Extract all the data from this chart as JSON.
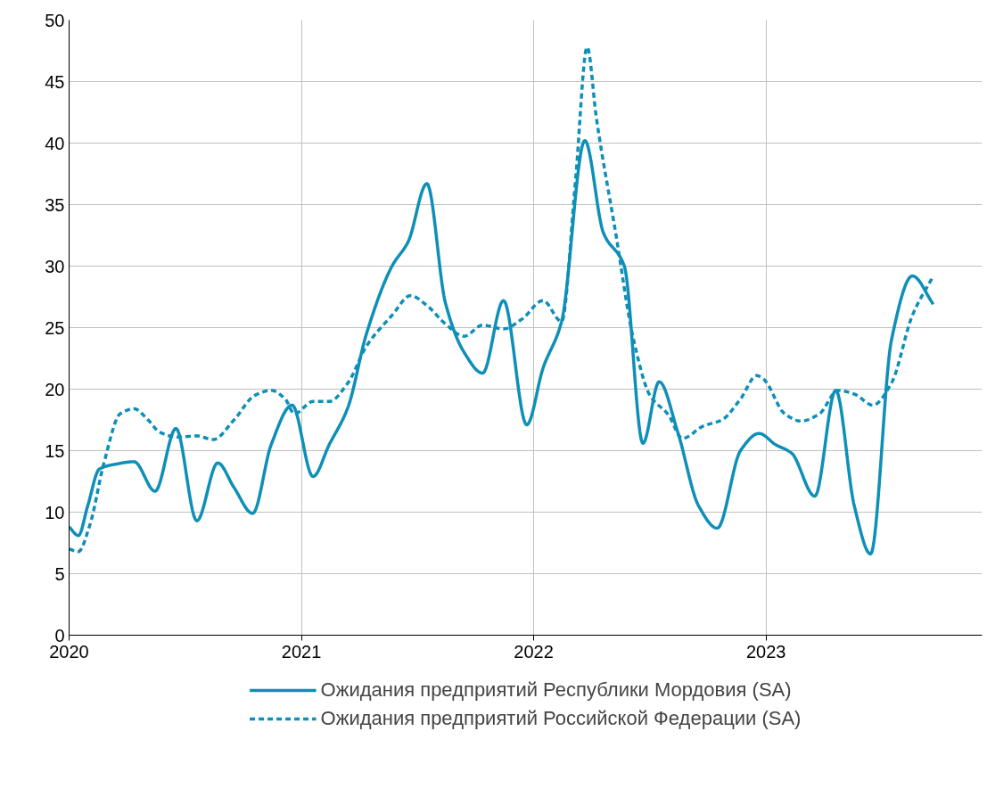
{
  "chart_data": {
    "type": "line",
    "xlim": [
      2020,
      2023.93
    ],
    "xticks": [
      2020,
      2021,
      2022,
      2023
    ],
    "ylim": [
      0,
      50
    ],
    "yticks": [
      0,
      5,
      10,
      15,
      20,
      25,
      30,
      35,
      40,
      45,
      50
    ],
    "grid": true,
    "legend": "bottom",
    "series": [
      {
        "name": "Ожидания предприятий Республики Мордовия (SA)",
        "color": "#0e8fb8",
        "line_style": "solid",
        "x": [
          2020.0,
          2020.04,
          2020.08,
          2020.13,
          2020.2,
          2020.28,
          2020.37,
          2020.46,
          2020.55,
          2020.64,
          2020.71,
          2020.79,
          2020.87,
          2020.96,
          2021.05,
          2021.12,
          2021.2,
          2021.28,
          2021.39,
          2021.46,
          2021.54,
          2021.62,
          2021.7,
          2021.78,
          2021.87,
          2021.97,
          2022.04,
          2022.12,
          2022.22,
          2022.3,
          2022.39,
          2022.47,
          2022.54,
          2022.62,
          2022.71,
          2022.79,
          2022.89,
          2022.97,
          2023.04,
          2023.11,
          2023.21,
          2023.3,
          2023.38,
          2023.45,
          2023.54,
          2023.63,
          2023.72
        ],
        "values": [
          8.8,
          8.1,
          10.5,
          13.5,
          13.9,
          14.1,
          11.7,
          16.8,
          9.3,
          14.0,
          12.0,
          9.9,
          15.5,
          18.7,
          12.9,
          15.5,
          18.5,
          24.5,
          30.0,
          32.0,
          36.7,
          27.0,
          23.0,
          21.3,
          27.2,
          17.1,
          21.7,
          25.5,
          40.2,
          32.7,
          30.0,
          15.6,
          20.6,
          16.5,
          10.5,
          8.7,
          15.0,
          16.4,
          15.5,
          14.8,
          11.3,
          19.9,
          10.5,
          6.6,
          24.0,
          29.2,
          26.9
        ]
      },
      {
        "name": "Ожидания предприятий Российской Федерации (SA)",
        "color": "#0e8fb8",
        "line_style": "dashed",
        "x": [
          2020.0,
          2020.04,
          2020.09,
          2020.15,
          2020.22,
          2020.28,
          2020.34,
          2020.39,
          2020.47,
          2020.55,
          2020.62,
          2020.71,
          2020.8,
          2020.87,
          2020.93,
          2020.97,
          2021.05,
          2021.12,
          2021.2,
          2021.28,
          2021.39,
          2021.47,
          2021.54,
          2021.62,
          2021.7,
          2021.78,
          2021.87,
          2021.95,
          2022.04,
          2022.12,
          2022.18,
          2022.23,
          2022.27,
          2022.35,
          2022.43,
          2022.5,
          2022.58,
          2022.64,
          2022.73,
          2022.81,
          2022.89,
          2022.96,
          2022.99,
          2023.08,
          2023.15,
          2023.23,
          2023.31,
          2023.38,
          2023.46,
          2023.54,
          2023.63,
          2023.72
        ],
        "values": [
          7.0,
          6.8,
          9.0,
          14.0,
          18.0,
          18.4,
          17.5,
          16.5,
          16.1,
          16.2,
          15.9,
          17.5,
          19.5,
          19.9,
          19.2,
          18.0,
          19.0,
          19.0,
          20.5,
          23.5,
          26.0,
          27.6,
          26.8,
          25.3,
          24.3,
          25.2,
          24.9,
          25.7,
          27.2,
          25.5,
          37.0,
          47.8,
          42.0,
          33.0,
          24.0,
          19.5,
          17.9,
          16.0,
          17.0,
          17.5,
          19.2,
          21.1,
          20.8,
          18.0,
          17.4,
          18.0,
          19.9,
          19.6,
          18.7,
          20.5,
          26.0,
          29.2
        ]
      }
    ]
  }
}
